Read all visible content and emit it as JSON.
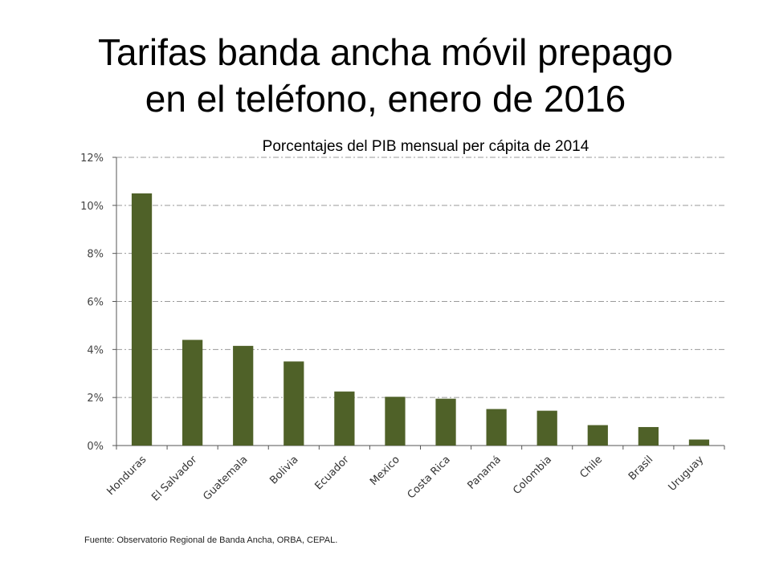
{
  "slide": {
    "title_line1": "Tarifas banda ancha móvil prepago",
    "title_line2": "en el teléfono, enero de 2016",
    "source": "Fuente: Observatorio Regional de Banda Ancha, ORBA, CEPAL."
  },
  "chart_data": {
    "type": "bar",
    "subtitle": "Porcentajes del PIB mensual per cápita de 2014",
    "categories": [
      "Honduras",
      "El Salvador",
      "Guatemala",
      "Bolivia",
      "Ecuador",
      "Mexico",
      "Costa Rica",
      "Panamá",
      "Colombia",
      "Chile",
      "Brasil",
      "Uruguay"
    ],
    "values": [
      10.5,
      4.4,
      4.15,
      3.5,
      2.25,
      2.03,
      1.95,
      1.52,
      1.45,
      0.85,
      0.77,
      0.25
    ],
    "ylim": [
      0,
      12
    ],
    "yticks": [
      0,
      2,
      4,
      6,
      8,
      10,
      12
    ],
    "ytick_labels": [
      "0%",
      "2%",
      "4%",
      "6%",
      "8%",
      "10%",
      "12%"
    ],
    "grid": true,
    "bar_color": "#4f6128"
  }
}
